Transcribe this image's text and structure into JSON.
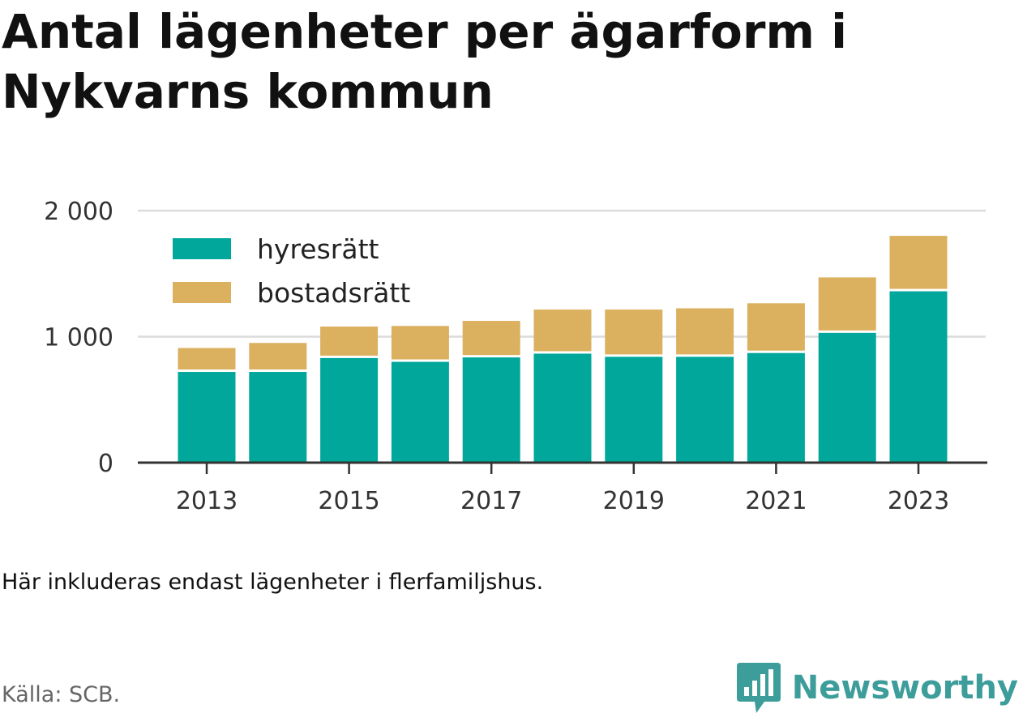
{
  "title": "Antal lägenheter per ägarform i Nykvarns kommun",
  "note": "Här inkluderas endast lägenheter i flerfamiljshus.",
  "source": "Källa: SCB.",
  "brand": {
    "name": "Newsworthy",
    "icon": "bar-chart-speech-bubble-icon",
    "color": "#3d9d9a"
  },
  "chart_data": {
    "type": "bar",
    "stacked": true,
    "title": "Antal lägenheter per ägarform i Nykvarns kommun",
    "xlabel": "",
    "ylabel": "",
    "x": [
      2013,
      2014,
      2015,
      2016,
      2017,
      2018,
      2019,
      2020,
      2021,
      2022,
      2023
    ],
    "x_tick_labels": [
      "2013",
      "2015",
      "2017",
      "2019",
      "2021",
      "2023"
    ],
    "ylim": [
      0,
      2000
    ],
    "y_ticks": [
      0,
      1000,
      2000
    ],
    "y_tick_labels": [
      "0",
      "1 000",
      "2 000"
    ],
    "grid": true,
    "legend_position": "top-left",
    "series": [
      {
        "name": "hyresrätt",
        "color": "#00a79a",
        "values": [
          720,
          720,
          830,
          800,
          835,
          865,
          840,
          840,
          870,
          1030,
          1360
        ]
      },
      {
        "name": "bostadsrätt",
        "color": "#dbb05e",
        "values": [
          190,
          230,
          250,
          285,
          290,
          350,
          375,
          385,
          395,
          440,
          440
        ]
      }
    ]
  }
}
